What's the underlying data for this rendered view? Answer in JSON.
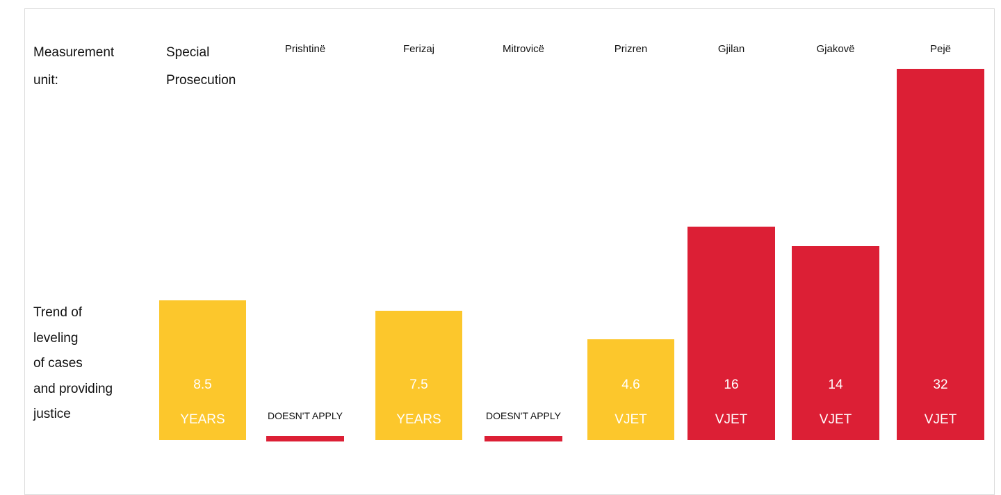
{
  "chart_data": {
    "type": "bar",
    "header_label": "Measurement unit:",
    "row_label": [
      "Trend of",
      "leveling",
      "of cases",
      "and providing",
      "justice"
    ],
    "categories": [
      "Special Prosecution",
      "Prishtinë",
      "Ferizaj",
      "Mitrovicë",
      "Prizren",
      "Gjilan",
      "Gjakovë",
      "Pejë"
    ],
    "values": [
      8.5,
      null,
      7.5,
      null,
      4.6,
      16,
      14,
      32
    ],
    "value_labels": [
      "8.5",
      "DOESN'T APPLY",
      "7.5",
      "DOESN'T APPLY",
      "4.6",
      "16",
      "14",
      "32"
    ],
    "units": [
      "YEARS",
      null,
      "YEARS",
      null,
      "VJET",
      "VJET",
      "VJET",
      "VJET"
    ],
    "colors": [
      "#fcc72c",
      "#dc1f35",
      "#fcc72c",
      "#dc1f35",
      "#fcc72c",
      "#dc1f35",
      "#dc1f35",
      "#dc1f35"
    ]
  }
}
